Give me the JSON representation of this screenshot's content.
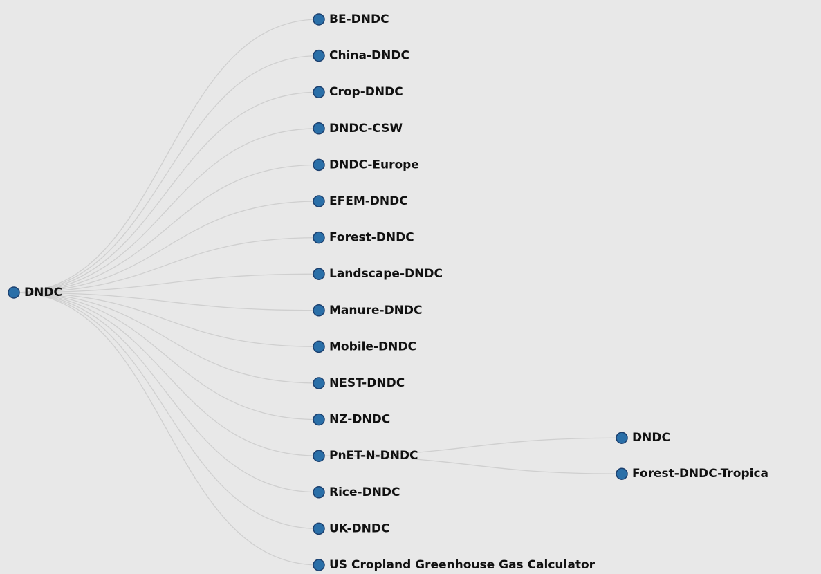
{
  "tree": {
    "root": {
      "label": "DNDC",
      "children": [
        {
          "label": "BE-DNDC"
        },
        {
          "label": "China-DNDC"
        },
        {
          "label": "Crop-DNDC"
        },
        {
          "label": "DNDC-CSW"
        },
        {
          "label": "DNDC-Europe"
        },
        {
          "label": "EFEM-DNDC"
        },
        {
          "label": "Forest-DNDC"
        },
        {
          "label": "Landscape-DNDC"
        },
        {
          "label": "Manure-DNDC"
        },
        {
          "label": "Mobile-DNDC"
        },
        {
          "label": "NEST-DNDC"
        },
        {
          "label": "NZ-DNDC"
        },
        {
          "label": "PnET-N-DNDC",
          "children": [
            {
              "label": "DNDC"
            },
            {
              "label": "Forest-DNDC-Tropica"
            }
          ]
        },
        {
          "label": "Rice-DNDC"
        },
        {
          "label": "UK-DNDC"
        },
        {
          "label": "US Cropland Greenhouse Gas Calculator"
        }
      ]
    }
  },
  "colors": {
    "node_fill": "#2a6fa8",
    "node_stroke": "#1b3f6e",
    "link": "#cfcfcf",
    "text": "#111111",
    "background": "#e8e8e8"
  }
}
